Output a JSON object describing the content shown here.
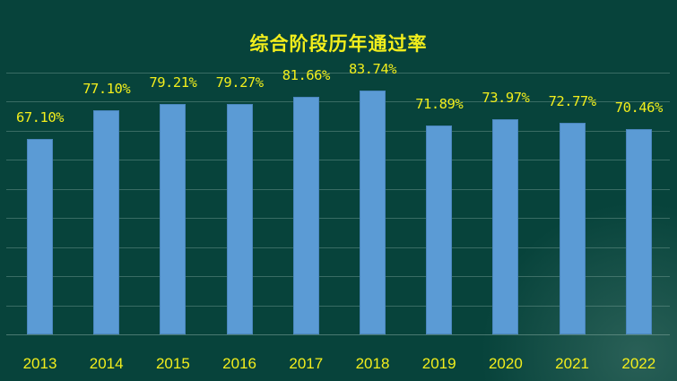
{
  "title": "综合阶段历年通过率",
  "colors": {
    "background": "#07433b",
    "bar": "#5b9bd5",
    "text": "#f2ee1c",
    "grid": "#4f7e74"
  },
  "chart_data": {
    "type": "bar",
    "title": "综合阶段历年通过率",
    "categories": [
      "2013",
      "2014",
      "2015",
      "2016",
      "2017",
      "2018",
      "2019",
      "2020",
      "2021",
      "2022"
    ],
    "values": [
      67.1,
      77.1,
      79.21,
      79.27,
      81.66,
      83.74,
      71.89,
      73.97,
      72.77,
      70.46
    ],
    "labels": [
      "67.10%",
      "77.10%",
      "79.21%",
      "79.27%",
      "81.66%",
      "83.74%",
      "71.89%",
      "73.97%",
      "72.77%",
      "70.46%"
    ],
    "xlabel": "",
    "ylabel": "",
    "ylim": [
      0,
      90
    ],
    "grid": true,
    "gridline_step": 10,
    "legend": "none",
    "y_tick_labels_visible": false
  }
}
